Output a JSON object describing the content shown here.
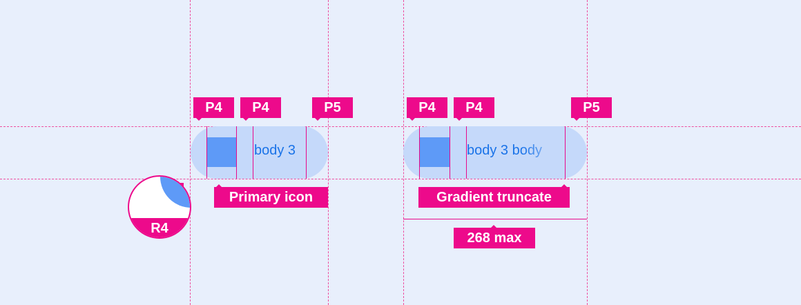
{
  "colors": {
    "background": "#e8effc",
    "chip": "#c5d9fa",
    "icon": "#5e9af7",
    "text": "#1a73e8",
    "annotation": "#ed0a8b"
  },
  "chip1": {
    "text": "body 3",
    "labels": [
      "P4",
      "P4",
      "P5"
    ],
    "callout": "Primary icon"
  },
  "chip2": {
    "text": "body 3 body",
    "labels": [
      "P4",
      "P4",
      "P5"
    ],
    "callout": "Gradient truncate",
    "width_label": "268 max"
  },
  "radius": {
    "label": "R4"
  }
}
